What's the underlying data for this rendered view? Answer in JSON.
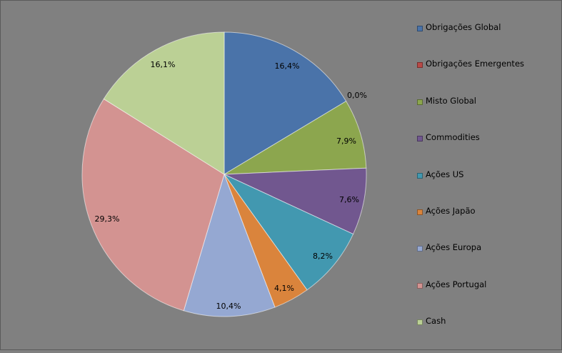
{
  "chart_data": {
    "type": "pie",
    "title": "",
    "legend_position": "right",
    "start_angle_deg": 0,
    "direction": "clockwise",
    "slices": [
      {
        "label": "Obrigações Global",
        "value": 16.4,
        "value_label": "16,4%",
        "color": "#4a73a9"
      },
      {
        "label": "Obrigações Emergentes",
        "value": 0.0,
        "value_label": "0,0%",
        "color": "#b84a47"
      },
      {
        "label": "Misto Global",
        "value": 7.9,
        "value_label": "7,9%",
        "color": "#8ca64e"
      },
      {
        "label": "Commodities",
        "value": 7.6,
        "value_label": "7,6%",
        "color": "#71578f"
      },
      {
        "label": "Ações US",
        "value": 8.2,
        "value_label": "8,2%",
        "color": "#4298b0"
      },
      {
        "label": "Ações Japão",
        "value": 4.1,
        "value_label": "4,1%",
        "color": "#da843c"
      },
      {
        "label": "Ações Europa",
        "value": 10.4,
        "value_label": "10,4%",
        "color": "#95a8d2"
      },
      {
        "label": "Ações Portugal",
        "value": 29.3,
        "value_label": "29,3%",
        "color": "#d39391"
      },
      {
        "label": "Cash",
        "value": 16.1,
        "value_label": "16,1%",
        "color": "#bbd095"
      }
    ]
  }
}
